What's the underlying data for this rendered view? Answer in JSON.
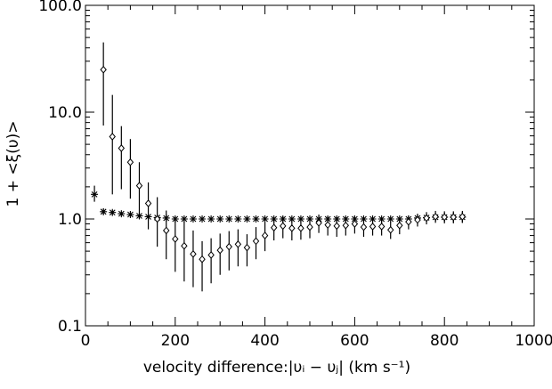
{
  "chart_data": {
    "type": "scatter",
    "title": "",
    "xlabel": "velocity difference:|υᵢ − υⱼ| (km s⁻¹)",
    "ylabel": "1 + <ξ(υ)>",
    "xlim": [
      0,
      1000
    ],
    "ylim": [
      0.1,
      100
    ],
    "yscale": "log",
    "grid": false,
    "legend": "none",
    "x_ticks": [
      0,
      200,
      400,
      600,
      800,
      1000
    ],
    "x_tick_labels": [
      "0",
      "200",
      "400",
      "600",
      "800",
      "1000"
    ],
    "y_ticks": [
      0.1,
      1,
      10,
      100
    ],
    "y_tick_labels": [
      "0.1",
      "1.0",
      "10.0",
      "100.0"
    ],
    "colors": {
      "marks": "#000000",
      "background": "#ffffff"
    },
    "series": [
      {
        "marker": "asterisk",
        "points": [
          {
            "x": 20,
            "y": 1.7,
            "lo": 1.45,
            "hi": 2.05
          },
          {
            "x": 40,
            "y": 1.17,
            "lo": 1.1,
            "hi": 1.25
          },
          {
            "x": 60,
            "y": 1.15,
            "lo": 1.1,
            "hi": 1.21
          },
          {
            "x": 80,
            "y": 1.12,
            "lo": 1.08,
            "hi": 1.17
          },
          {
            "x": 100,
            "y": 1.1,
            "lo": 1.06,
            "hi": 1.14
          },
          {
            "x": 120,
            "y": 1.07,
            "lo": 1.03,
            "hi": 1.11
          },
          {
            "x": 140,
            "y": 1.05,
            "lo": 1.02,
            "hi": 1.08
          },
          {
            "x": 160,
            "y": 1.03,
            "lo": 1.0,
            "hi": 1.06
          },
          {
            "x": 180,
            "y": 1.02,
            "lo": 0.99,
            "hi": 1.05
          },
          {
            "x": 200,
            "y": 1.0
          },
          {
            "x": 220,
            "y": 1.0
          },
          {
            "x": 240,
            "y": 1.0
          },
          {
            "x": 260,
            "y": 1.0
          },
          {
            "x": 280,
            "y": 1.0
          },
          {
            "x": 300,
            "y": 1.0
          },
          {
            "x": 320,
            "y": 1.0
          },
          {
            "x": 340,
            "y": 1.0
          },
          {
            "x": 360,
            "y": 1.0
          },
          {
            "x": 380,
            "y": 1.0
          },
          {
            "x": 400,
            "y": 1.0
          },
          {
            "x": 420,
            "y": 1.0
          },
          {
            "x": 440,
            "y": 1.0
          },
          {
            "x": 460,
            "y": 1.0
          },
          {
            "x": 480,
            "y": 1.0
          },
          {
            "x": 500,
            "y": 1.0
          },
          {
            "x": 520,
            "y": 1.0
          },
          {
            "x": 540,
            "y": 1.0
          },
          {
            "x": 560,
            "y": 1.0
          },
          {
            "x": 580,
            "y": 1.0
          },
          {
            "x": 600,
            "y": 1.0
          },
          {
            "x": 620,
            "y": 1.0
          },
          {
            "x": 640,
            "y": 1.0
          },
          {
            "x": 660,
            "y": 1.0
          },
          {
            "x": 680,
            "y": 1.0
          },
          {
            "x": 700,
            "y": 1.0
          },
          {
            "x": 720,
            "y": 1.0
          },
          {
            "x": 740,
            "y": 1.02,
            "lo": 0.97,
            "hi": 1.07
          },
          {
            "x": 760,
            "y": 1.03,
            "lo": 0.96,
            "hi": 1.1
          },
          {
            "x": 780,
            "y": 1.04,
            "lo": 0.95,
            "hi": 1.12
          },
          {
            "x": 800,
            "y": 1.04,
            "lo": 0.94,
            "hi": 1.14
          },
          {
            "x": 820,
            "y": 1.04,
            "lo": 0.93,
            "hi": 1.15
          },
          {
            "x": 840,
            "y": 1.04,
            "lo": 0.92,
            "hi": 1.16
          }
        ]
      },
      {
        "marker": "diamond",
        "points": [
          {
            "x": 40,
            "y": 25.0,
            "lo": 7.5,
            "hi": 45.0
          },
          {
            "x": 60,
            "y": 5.9,
            "lo": 1.7,
            "hi": 14.5
          },
          {
            "x": 80,
            "y": 4.6,
            "lo": 1.9,
            "hi": 7.4
          },
          {
            "x": 100,
            "y": 3.4,
            "lo": 1.55,
            "hi": 5.6
          },
          {
            "x": 120,
            "y": 2.05,
            "lo": 1.0,
            "hi": 3.4
          },
          {
            "x": 140,
            "y": 1.4,
            "lo": 0.8,
            "hi": 2.2
          },
          {
            "x": 160,
            "y": 1.0,
            "lo": 0.55,
            "hi": 1.6
          },
          {
            "x": 180,
            "y": 0.78,
            "lo": 0.42,
            "hi": 1.2
          },
          {
            "x": 200,
            "y": 0.65,
            "lo": 0.32,
            "hi": 1.05
          },
          {
            "x": 220,
            "y": 0.56,
            "lo": 0.26,
            "hi": 0.95
          },
          {
            "x": 240,
            "y": 0.47,
            "lo": 0.23,
            "hi": 0.78
          },
          {
            "x": 260,
            "y": 0.42,
            "lo": 0.21,
            "hi": 0.62
          },
          {
            "x": 280,
            "y": 0.46,
            "lo": 0.25,
            "hi": 0.66
          },
          {
            "x": 300,
            "y": 0.51,
            "lo": 0.3,
            "hi": 0.73
          },
          {
            "x": 320,
            "y": 0.55,
            "lo": 0.33,
            "hi": 0.77
          },
          {
            "x": 340,
            "y": 0.58,
            "lo": 0.36,
            "hi": 0.8
          },
          {
            "x": 360,
            "y": 0.54,
            "lo": 0.36,
            "hi": 0.72
          },
          {
            "x": 380,
            "y": 0.62,
            "lo": 0.42,
            "hi": 0.84
          },
          {
            "x": 400,
            "y": 0.7,
            "lo": 0.5,
            "hi": 0.93
          },
          {
            "x": 420,
            "y": 0.83,
            "lo": 0.63,
            "hi": 1.03
          },
          {
            "x": 440,
            "y": 0.86,
            "lo": 0.66,
            "hi": 1.06
          },
          {
            "x": 460,
            "y": 0.82,
            "lo": 0.63,
            "hi": 1.02
          },
          {
            "x": 480,
            "y": 0.82,
            "lo": 0.64,
            "hi": 1.01
          },
          {
            "x": 500,
            "y": 0.84,
            "lo": 0.66,
            "hi": 1.02
          },
          {
            "x": 520,
            "y": 0.92,
            "lo": 0.74,
            "hi": 1.1
          },
          {
            "x": 540,
            "y": 0.88,
            "lo": 0.7,
            "hi": 1.06
          },
          {
            "x": 560,
            "y": 0.86,
            "lo": 0.68,
            "hi": 1.04
          },
          {
            "x": 580,
            "y": 0.87,
            "lo": 0.7,
            "hi": 1.04
          },
          {
            "x": 600,
            "y": 0.9,
            "lo": 0.73,
            "hi": 1.07
          },
          {
            "x": 620,
            "y": 0.84,
            "lo": 0.68,
            "hi": 1.01
          },
          {
            "x": 640,
            "y": 0.85,
            "lo": 0.7,
            "hi": 1.01
          },
          {
            "x": 660,
            "y": 0.85,
            "lo": 0.7,
            "hi": 1.0
          },
          {
            "x": 680,
            "y": 0.79,
            "lo": 0.65,
            "hi": 0.94
          },
          {
            "x": 700,
            "y": 0.87,
            "lo": 0.72,
            "hi": 1.02
          },
          {
            "x": 720,
            "y": 0.94,
            "lo": 0.8,
            "hi": 1.08
          },
          {
            "x": 740,
            "y": 0.98,
            "lo": 0.85,
            "hi": 1.12
          },
          {
            "x": 760,
            "y": 1.02,
            "lo": 0.89,
            "hi": 1.16
          },
          {
            "x": 780,
            "y": 1.05,
            "lo": 0.92,
            "hi": 1.19
          },
          {
            "x": 800,
            "y": 1.04,
            "lo": 0.91,
            "hi": 1.18
          },
          {
            "x": 820,
            "y": 1.04,
            "lo": 0.91,
            "hi": 1.18
          },
          {
            "x": 840,
            "y": 1.05,
            "lo": 0.92,
            "hi": 1.19
          }
        ]
      }
    ]
  }
}
